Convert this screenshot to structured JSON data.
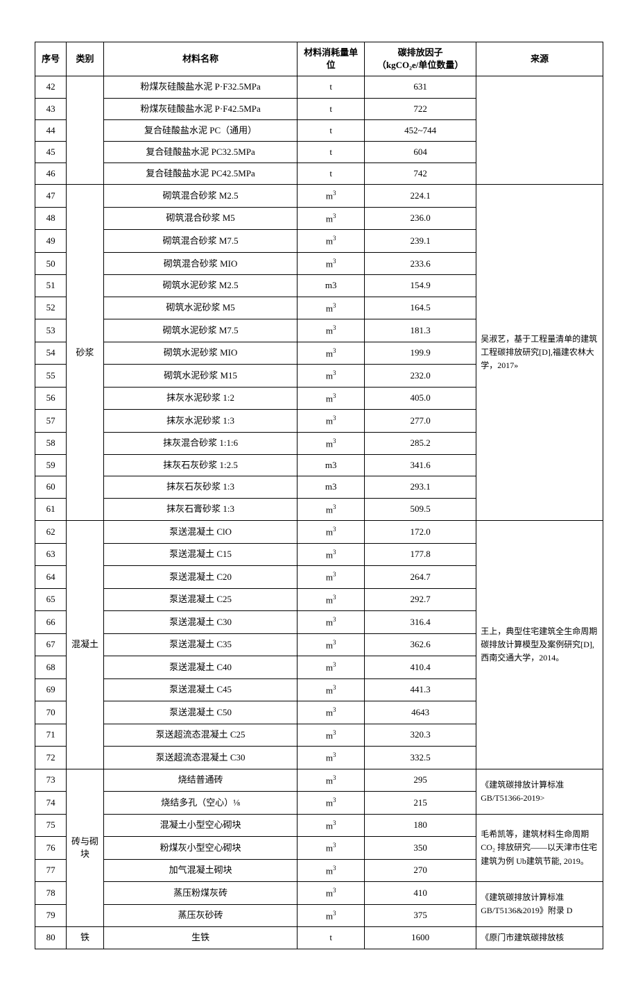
{
  "headers": {
    "seq": "序号",
    "cat": "类别",
    "name": "材料名称",
    "unit": "材料消耗量单位",
    "factor_l1": "碳排放因子",
    "factor_l2": "（kgCO₂e/单位数量）",
    "src": "来源"
  },
  "units": {
    "t": "t",
    "m3": "m",
    "m3_plain": "m3"
  },
  "rows": {
    "r42": {
      "seq": "42",
      "name": "粉煤灰硅酸盐水泥 P·F32.5MPa",
      "unit": "t",
      "factor": "631"
    },
    "r43": {
      "seq": "43",
      "name": "粉煤灰硅酸盐水泥 P·F42.5MPa",
      "unit": "t",
      "factor": "722"
    },
    "r44": {
      "seq": "44",
      "name": "复合硅酸盐水泥 PC（通用）",
      "unit": "t",
      "factor": "452~744"
    },
    "r45": {
      "seq": "45",
      "name": "复合硅酸盐水泥 PC32.5MPa",
      "unit": "t",
      "factor": "604"
    },
    "r46": {
      "seq": "46",
      "name": "复合硅酸盐水泥 PC42.5MPa",
      "unit": "t",
      "factor": "742"
    },
    "r47": {
      "seq": "47",
      "name": "砌筑混合砂浆 M2.5",
      "factor": "224.1"
    },
    "r48": {
      "seq": "48",
      "name": "砌筑混合砂浆 M5",
      "factor": "236.0"
    },
    "r49": {
      "seq": "49",
      "name": "砌筑混合砂浆 M7.5",
      "factor": "239.1"
    },
    "r50": {
      "seq": "50",
      "name": "砌筑混合砂浆 MIO",
      "factor": "233.6"
    },
    "r51": {
      "seq": "51",
      "name": "砌筑水泥砂浆 M2.5",
      "factor": "154.9"
    },
    "r52": {
      "seq": "52",
      "name": "砌筑水泥砂浆 M5",
      "factor": "164.5"
    },
    "r53": {
      "seq": "53",
      "name": "砌筑水泥砂浆 M7.5",
      "factor": "181.3"
    },
    "r54": {
      "seq": "54",
      "name": "砌筑水泥砂浆 MIO",
      "factor": "199.9"
    },
    "r55": {
      "seq": "55",
      "name": "砌筑水泥砂浆 M15",
      "factor": "232.0"
    },
    "r56": {
      "seq": "56",
      "name": "抹灰水泥砂浆 1:2",
      "factor": "405.0"
    },
    "r57": {
      "seq": "57",
      "name": "抹灰水泥砂浆 1:3",
      "factor": "277.0"
    },
    "r58": {
      "seq": "58",
      "name": "抹灰混合砂浆 1:1:6",
      "factor": "285.2"
    },
    "r59": {
      "seq": "59",
      "name": "抹灰石灰砂浆 1:2.5",
      "factor": "341.6"
    },
    "r60": {
      "seq": "60",
      "name": "抹灰石灰砂浆 1:3",
      "factor": "293.1"
    },
    "r61": {
      "seq": "61",
      "name": "抹灰石膏砂浆 1:3",
      "factor": "509.5"
    },
    "r62": {
      "seq": "62",
      "name": "泵送混凝土 ClO",
      "factor": "172.0"
    },
    "r63": {
      "seq": "63",
      "name": "泵送混凝土 C15",
      "factor": "177.8"
    },
    "r64": {
      "seq": "64",
      "name": "泵送混凝土 C20",
      "factor": "264.7"
    },
    "r65": {
      "seq": "65",
      "name": "泵送混凝土 C25",
      "factor": "292.7"
    },
    "r66": {
      "seq": "66",
      "name": "泵送混凝土 C30",
      "factor": "316.4"
    },
    "r67": {
      "seq": "67",
      "name": "泵送混凝土 C35",
      "factor": "362.6"
    },
    "r68": {
      "seq": "68",
      "name": "泵送混凝土 C40",
      "factor": "410.4"
    },
    "r69": {
      "seq": "69",
      "name": "泵送混凝土 C45",
      "factor": "441.3"
    },
    "r70": {
      "seq": "70",
      "name": "泵送混凝土 C50",
      "factor": "4643"
    },
    "r71": {
      "seq": "71",
      "name": "泵送超流态混凝土 C25",
      "factor": "320.3"
    },
    "r72": {
      "seq": "72",
      "name": "泵送超流态混凝土 C30",
      "factor": "332.5"
    },
    "r73": {
      "seq": "73",
      "name": "烧结普通砖",
      "factor": "295"
    },
    "r74": {
      "seq": "74",
      "name": "烧结多孔（空心）⅛",
      "factor": "215"
    },
    "r75": {
      "seq": "75",
      "name": "混凝土小型空心砌块",
      "factor": "180"
    },
    "r76": {
      "seq": "76",
      "name": "粉煤灰小型空心砌块",
      "factor": "350"
    },
    "r77": {
      "seq": "77",
      "name": "加气混凝土砌块",
      "factor": "270"
    },
    "r78": {
      "seq": "78",
      "name": "蒸压粉煤灰砖",
      "factor": "410"
    },
    "r79": {
      "seq": "79",
      "name": "蒸压灰砂砖",
      "factor": "375"
    },
    "r80": {
      "seq": "80",
      "name": "生铁",
      "unit": "t",
      "factor": "1600"
    }
  },
  "cats": {
    "shajiang": "砂浆",
    "hunningtu": "混凝土",
    "zhuan": "砖与砌块",
    "tie": "铁"
  },
  "sources": {
    "src_empty": "",
    "src_wu": "吴淑艺，基于工程量清单的建筑工程碳排放研究[D],福建农林大学，2017»",
    "src_wang": "王上，典型住宅建筑全生命周期碳排放计算模型及案例研究[D],西南交通大学，2014。",
    "src_gb_2019": "《建筑碳排放计算标准GB/T51366-2019>",
    "src_mao": "毛希凯等，建筑材料生命周期 CO₂ 排放研究——以天津市住宅建筑为例 Ub建筑节能, 2019。",
    "src_gb_d": "《建筑碳排放计算标准GB/T5136&2019》附录 D",
    "src_yuanmen": "《原门市建筑碳排放核"
  }
}
